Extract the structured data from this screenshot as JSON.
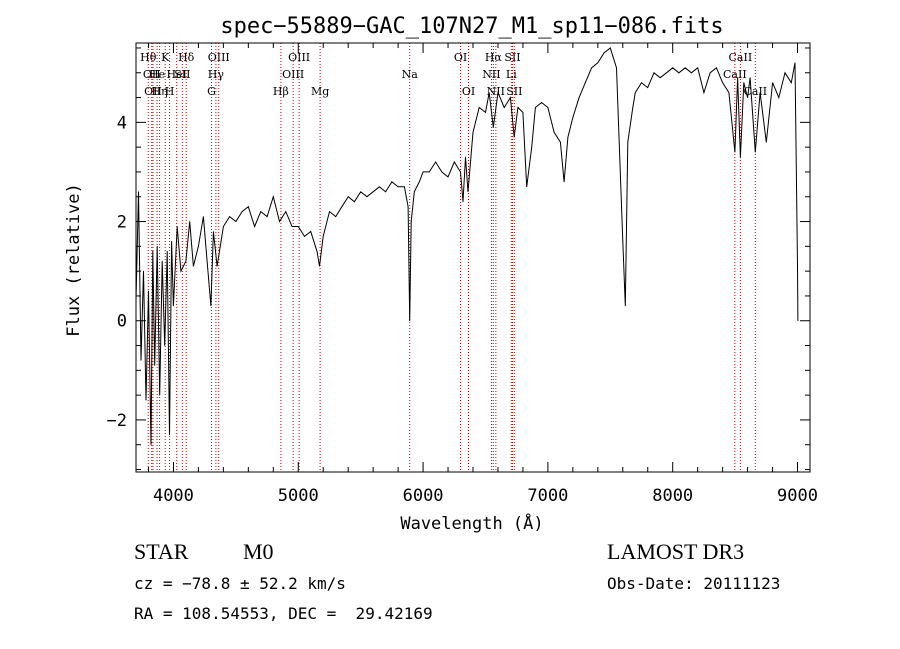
{
  "chart_data": {
    "type": "line",
    "title": "spec−55889−GAC_107N27_M1_sp11−086.fits",
    "xlabel": "Wavelength (Å)",
    "ylabel": "Flux (relative)",
    "xlim": [
      3700,
      9100
    ],
    "ylim": [
      -3.05,
      5.6
    ],
    "x_ticks": [
      4000,
      5000,
      6000,
      7000,
      8000,
      9000
    ],
    "y_ticks": [
      -2,
      0,
      2,
      4
    ],
    "y_tick_labels": [
      "−2",
      "0",
      "2",
      "4"
    ],
    "grid": false,
    "series": [
      {
        "color": "#000000",
        "points": [
          [
            3700,
            0.4
          ],
          [
            3720,
            2.6
          ],
          [
            3740,
            -0.8
          ],
          [
            3760,
            1.0
          ],
          [
            3780,
            -1.6
          ],
          [
            3800,
            0.6
          ],
          [
            3820,
            -2.5
          ],
          [
            3835,
            1.4
          ],
          [
            3850,
            -0.9
          ],
          [
            3870,
            1.5
          ],
          [
            3890,
            -1.5
          ],
          [
            3910,
            1.2
          ],
          [
            3930,
            -0.5
          ],
          [
            3950,
            1.4
          ],
          [
            3968,
            -2.3
          ],
          [
            3985,
            1.6
          ],
          [
            4000,
            0.3
          ],
          [
            4030,
            1.9
          ],
          [
            4060,
            1.0
          ],
          [
            4100,
            1.2
          ],
          [
            4130,
            2.0
          ],
          [
            4160,
            1.1
          ],
          [
            4200,
            1.5
          ],
          [
            4240,
            2.1
          ],
          [
            4270,
            1.2
          ],
          [
            4300,
            0.3
          ],
          [
            4320,
            1.8
          ],
          [
            4350,
            1.1
          ],
          [
            4400,
            1.9
          ],
          [
            4450,
            2.1
          ],
          [
            4500,
            2.0
          ],
          [
            4550,
            2.2
          ],
          [
            4600,
            2.3
          ],
          [
            4650,
            1.9
          ],
          [
            4700,
            2.2
          ],
          [
            4750,
            2.1
          ],
          [
            4800,
            2.5
          ],
          [
            4850,
            2.0
          ],
          [
            4900,
            2.2
          ],
          [
            4950,
            1.9
          ],
          [
            5000,
            1.9
          ],
          [
            5050,
            1.7
          ],
          [
            5100,
            1.8
          ],
          [
            5150,
            1.4
          ],
          [
            5170,
            1.1
          ],
          [
            5200,
            1.7
          ],
          [
            5250,
            2.2
          ],
          [
            5300,
            2.1
          ],
          [
            5350,
            2.3
          ],
          [
            5400,
            2.5
          ],
          [
            5450,
            2.4
          ],
          [
            5500,
            2.6
          ],
          [
            5550,
            2.5
          ],
          [
            5600,
            2.6
          ],
          [
            5650,
            2.7
          ],
          [
            5700,
            2.6
          ],
          [
            5750,
            2.8
          ],
          [
            5800,
            2.7
          ],
          [
            5850,
            2.7
          ],
          [
            5880,
            2.3
          ],
          [
            5893,
            0.0
          ],
          [
            5905,
            2.0
          ],
          [
            5930,
            2.6
          ],
          [
            5970,
            2.8
          ],
          [
            6000,
            3.0
          ],
          [
            6050,
            3.0
          ],
          [
            6100,
            3.2
          ],
          [
            6150,
            3.0
          ],
          [
            6200,
            2.9
          ],
          [
            6250,
            3.2
          ],
          [
            6300,
            3.0
          ],
          [
            6320,
            2.4
          ],
          [
            6340,
            3.3
          ],
          [
            6360,
            2.6
          ],
          [
            6400,
            3.8
          ],
          [
            6450,
            4.3
          ],
          [
            6500,
            4.2
          ],
          [
            6530,
            4.6
          ],
          [
            6563,
            3.9
          ],
          [
            6600,
            4.6
          ],
          [
            6650,
            4.3
          ],
          [
            6700,
            4.5
          ],
          [
            6730,
            3.7
          ],
          [
            6760,
            4.3
          ],
          [
            6800,
            4.2
          ],
          [
            6830,
            2.7
          ],
          [
            6870,
            3.5
          ],
          [
            6900,
            4.3
          ],
          [
            6950,
            4.4
          ],
          [
            7000,
            4.3
          ],
          [
            7050,
            3.8
          ],
          [
            7100,
            3.6
          ],
          [
            7130,
            2.8
          ],
          [
            7160,
            3.7
          ],
          [
            7200,
            4.1
          ],
          [
            7250,
            4.5
          ],
          [
            7300,
            4.8
          ],
          [
            7350,
            5.1
          ],
          [
            7400,
            5.2
          ],
          [
            7450,
            5.4
          ],
          [
            7500,
            5.5
          ],
          [
            7550,
            5.1
          ],
          [
            7600,
            1.6
          ],
          [
            7620,
            0.3
          ],
          [
            7640,
            3.6
          ],
          [
            7680,
            4.3
          ],
          [
            7700,
            4.6
          ],
          [
            7750,
            4.8
          ],
          [
            7800,
            4.7
          ],
          [
            7850,
            5.0
          ],
          [
            7900,
            4.9
          ],
          [
            7950,
            5.0
          ],
          [
            8000,
            5.1
          ],
          [
            8050,
            5.0
          ],
          [
            8100,
            5.1
          ],
          [
            8150,
            5.0
          ],
          [
            8200,
            5.1
          ],
          [
            8250,
            4.6
          ],
          [
            8300,
            5.0
          ],
          [
            8350,
            5.1
          ],
          [
            8400,
            4.8
          ],
          [
            8450,
            4.6
          ],
          [
            8498,
            3.4
          ],
          [
            8520,
            4.9
          ],
          [
            8542,
            3.3
          ],
          [
            8570,
            4.8
          ],
          [
            8600,
            4.5
          ],
          [
            8620,
            4.9
          ],
          [
            8662,
            3.4
          ],
          [
            8700,
            4.6
          ],
          [
            8750,
            3.6
          ],
          [
            8800,
            4.8
          ],
          [
            8850,
            4.5
          ],
          [
            8900,
            5.0
          ],
          [
            8950,
            4.8
          ],
          [
            8980,
            5.2
          ],
          [
            9000,
            1.1
          ],
          [
            9003,
            0.0
          ]
        ]
      }
    ],
    "lines": [
      {
        "wl": 3798,
        "label": "Hθ",
        "row": 0
      },
      {
        "wl": 3826,
        "label": "OII",
        "row": 1
      },
      {
        "wl": 3836,
        "label": "OII",
        "row": 2
      },
      {
        "wl": 3869,
        "label": "He",
        "row": 1
      },
      {
        "wl": 3889,
        "label": "Hη",
        "row": 2
      },
      {
        "wl": 3934,
        "label": "K",
        "row": 0
      },
      {
        "wl": 3969,
        "label": "H",
        "row": 2
      },
      {
        "wl": 4026,
        "label": "HeI",
        "row": 1
      },
      {
        "wl": 4071,
        "label": "SII",
        "row": 1
      },
      {
        "wl": 4102,
        "label": "Hδ",
        "row": 0
      },
      {
        "wl": 4305,
        "label": "G",
        "row": 2
      },
      {
        "wl": 4340,
        "label": "Hγ",
        "row": 1
      },
      {
        "wl": 4363,
        "label": "OIII",
        "row": 0
      },
      {
        "wl": 4861,
        "label": "Hβ",
        "row": 2
      },
      {
        "wl": 4959,
        "label": "OIII",
        "row": 1
      },
      {
        "wl": 5007,
        "label": "OIII",
        "row": 0
      },
      {
        "wl": 5175,
        "label": "Mg",
        "row": 2
      },
      {
        "wl": 5893,
        "label": "Na",
        "row": 1
      },
      {
        "wl": 6300,
        "label": "OI",
        "row": 0
      },
      {
        "wl": 6364,
        "label": "OI",
        "row": 2
      },
      {
        "wl": 6548,
        "label": "NII",
        "row": 1
      },
      {
        "wl": 6563,
        "label": "Hα",
        "row": 0
      },
      {
        "wl": 6583,
        "label": "NII",
        "row": 2
      },
      {
        "wl": 6707,
        "label": "Li",
        "row": 1
      },
      {
        "wl": 6716,
        "label": "SII",
        "row": 0
      },
      {
        "wl": 6731,
        "label": "SII",
        "row": 2
      },
      {
        "wl": 8498,
        "label": "CaII",
        "row": 1
      },
      {
        "wl": 8542,
        "label": "CaII",
        "row": 0
      },
      {
        "wl": 8662,
        "label": "CaII",
        "row": 2
      }
    ],
    "line_color": "#cc0000"
  },
  "info": {
    "class": "STAR",
    "subclass": "M0",
    "survey": "LAMOST DR3",
    "cz": "cz = −78.8 ± 52.2 km/s",
    "obs_date": "Obs-Date: 20111123",
    "radec": "RA = 108.54553, DEC =  29.42169"
  }
}
